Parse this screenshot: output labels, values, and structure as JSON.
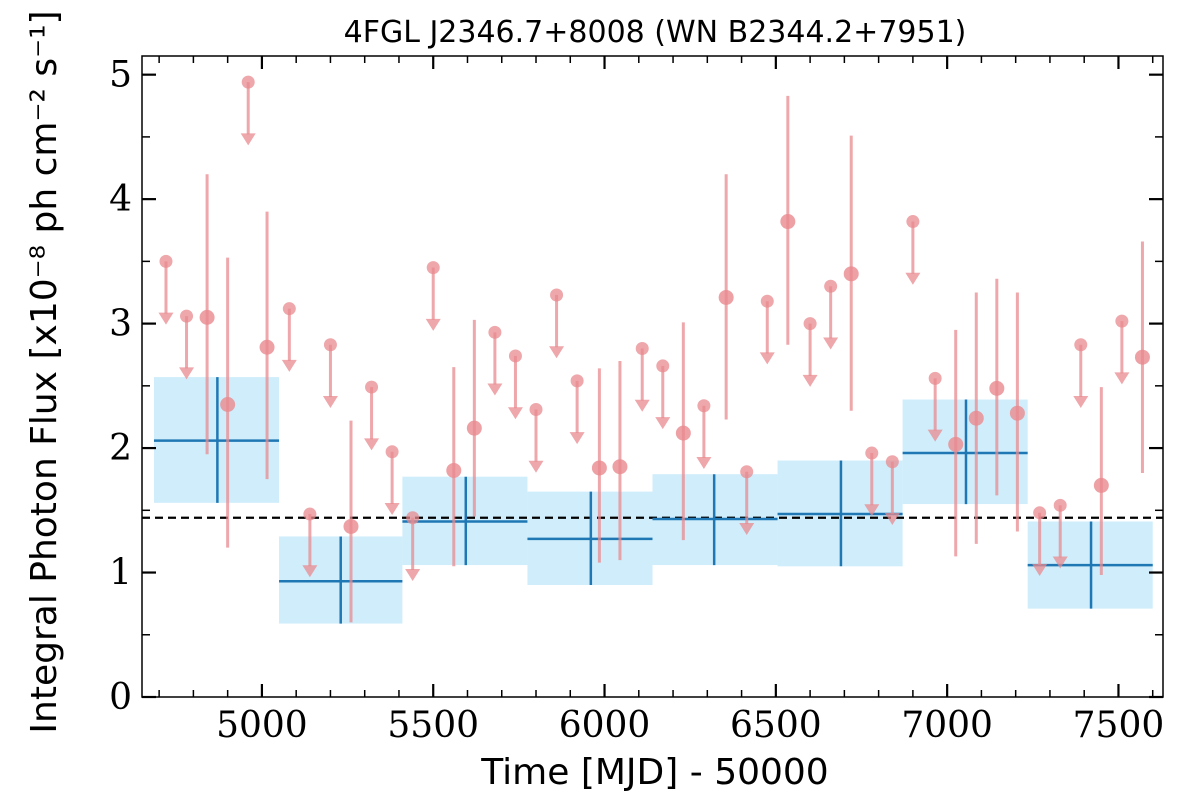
{
  "chart_data": {
    "type": "scatter",
    "title": "4FGL J2346.7+8008 (WN B2344.2+7951)",
    "xlabel": "Time [MJD] - 50000",
    "ylabel": "Integral Photon Flux [x10⁻⁸ ph cm⁻² s⁻¹]",
    "xlim": [
      4650,
      7630
    ],
    "ylim": [
      0,
      5.15
    ],
    "x_ticks": [
      5000,
      5500,
      6000,
      6500,
      7000,
      7500
    ],
    "x_minor_step": 100,
    "y_ticks": [
      0,
      1,
      2,
      3,
      4,
      5
    ],
    "y_minor_step": 0.5,
    "x_tick_labels": [
      "5000",
      "5500",
      "6000",
      "6500",
      "7000",
      "7500"
    ],
    "y_tick_labels": [
      "0",
      "1",
      "2",
      "3",
      "4",
      "5"
    ],
    "grid": false,
    "average_flux": 1.44,
    "colors": {
      "short_points": "#e8898f",
      "long_bins": "#1f77b4",
      "long_band": "#cfedfb",
      "average_line": "#000000"
    },
    "long_bins": [
      {
        "x_start": 4685,
        "x_end": 5050,
        "x_center": 4870,
        "y": 2.06,
        "y_low": 1.56,
        "y_high": 2.57
      },
      {
        "x_start": 5050,
        "x_end": 5410,
        "x_center": 5230,
        "y": 0.93,
        "y_low": 0.59,
        "y_high": 1.29
      },
      {
        "x_start": 5410,
        "x_end": 5775,
        "x_center": 5595,
        "y": 1.41,
        "y_low": 1.06,
        "y_high": 1.77
      },
      {
        "x_start": 5775,
        "x_end": 6140,
        "x_center": 5960,
        "y": 1.27,
        "y_low": 0.9,
        "y_high": 1.65
      },
      {
        "x_start": 6140,
        "x_end": 6505,
        "x_center": 6320,
        "y": 1.43,
        "y_low": 1.06,
        "y_high": 1.79
      },
      {
        "x_start": 6505,
        "x_end": 6870,
        "x_center": 6690,
        "y": 1.47,
        "y_low": 1.05,
        "y_high": 1.9
      },
      {
        "x_start": 6870,
        "x_end": 7235,
        "x_center": 7055,
        "y": 1.96,
        "y_low": 1.55,
        "y_high": 2.39
      },
      {
        "x_start": 7235,
        "x_end": 7600,
        "x_center": 7420,
        "y": 1.06,
        "y_low": 0.71,
        "y_high": 1.41
      }
    ],
    "short_points": [
      {
        "x": 4720,
        "y": 3.5,
        "upper_limit": true
      },
      {
        "x": 4780,
        "y": 3.06,
        "upper_limit": true
      },
      {
        "x": 4840,
        "y": 3.05,
        "y_low": 1.95,
        "y_high": 4.2
      },
      {
        "x": 4900,
        "y": 2.35,
        "y_low": 1.2,
        "y_high": 3.53
      },
      {
        "x": 4960,
        "y": 4.94,
        "upper_limit": true
      },
      {
        "x": 5015,
        "y": 2.81,
        "y_low": 1.75,
        "y_high": 3.9
      },
      {
        "x": 5080,
        "y": 3.12,
        "upper_limit": true
      },
      {
        "x": 5140,
        "y": 1.47,
        "upper_limit": true
      },
      {
        "x": 5200,
        "y": 2.83,
        "upper_limit": true
      },
      {
        "x": 5260,
        "y": 1.37,
        "y_low": 0.6,
        "y_high": 2.22
      },
      {
        "x": 5320,
        "y": 2.49,
        "upper_limit": true
      },
      {
        "x": 5380,
        "y": 1.97,
        "upper_limit": true
      },
      {
        "x": 5440,
        "y": 1.44,
        "upper_limit": true
      },
      {
        "x": 5500,
        "y": 3.45,
        "upper_limit": true
      },
      {
        "x": 5560,
        "y": 1.82,
        "y_low": 1.05,
        "y_high": 2.65
      },
      {
        "x": 5620,
        "y": 2.16,
        "y_low": 1.45,
        "y_high": 3.03
      },
      {
        "x": 5680,
        "y": 2.93,
        "upper_limit": true
      },
      {
        "x": 5740,
        "y": 2.74,
        "upper_limit": true
      },
      {
        "x": 5800,
        "y": 2.31,
        "upper_limit": true
      },
      {
        "x": 5860,
        "y": 3.23,
        "upper_limit": true
      },
      {
        "x": 5920,
        "y": 2.54,
        "upper_limit": true
      },
      {
        "x": 5985,
        "y": 1.84,
        "y_low": 1.08,
        "y_high": 2.64
      },
      {
        "x": 6045,
        "y": 1.85,
        "y_low": 1.1,
        "y_high": 2.7
      },
      {
        "x": 6110,
        "y": 2.8,
        "upper_limit": true
      },
      {
        "x": 6170,
        "y": 2.66,
        "upper_limit": true
      },
      {
        "x": 6230,
        "y": 2.12,
        "y_low": 1.26,
        "y_high": 3.01
      },
      {
        "x": 6290,
        "y": 2.34,
        "upper_limit": true
      },
      {
        "x": 6355,
        "y": 3.21,
        "y_low": 2.23,
        "y_high": 4.2
      },
      {
        "x": 6415,
        "y": 1.81,
        "upper_limit": true
      },
      {
        "x": 6475,
        "y": 3.18,
        "upper_limit": true
      },
      {
        "x": 6535,
        "y": 3.82,
        "y_low": 2.83,
        "y_high": 4.83
      },
      {
        "x": 6600,
        "y": 3.0,
        "upper_limit": true
      },
      {
        "x": 6660,
        "y": 3.3,
        "upper_limit": true
      },
      {
        "x": 6720,
        "y": 3.4,
        "y_low": 2.3,
        "y_high": 4.51
      },
      {
        "x": 6780,
        "y": 1.96,
        "upper_limit": true
      },
      {
        "x": 6840,
        "y": 1.89,
        "upper_limit": true
      },
      {
        "x": 6900,
        "y": 3.82,
        "upper_limit": true
      },
      {
        "x": 6965,
        "y": 2.56,
        "upper_limit": true
      },
      {
        "x": 7025,
        "y": 2.03,
        "y_low": 1.13,
        "y_high": 2.95
      },
      {
        "x": 7085,
        "y": 2.24,
        "y_low": 1.23,
        "y_high": 3.25
      },
      {
        "x": 7145,
        "y": 2.48,
        "y_low": 1.62,
        "y_high": 3.36
      },
      {
        "x": 7205,
        "y": 2.28,
        "y_low": 1.33,
        "y_high": 3.25
      },
      {
        "x": 7270,
        "y": 1.48,
        "upper_limit": true
      },
      {
        "x": 7330,
        "y": 1.54,
        "upper_limit": true
      },
      {
        "x": 7390,
        "y": 2.83,
        "upper_limit": true
      },
      {
        "x": 7450,
        "y": 1.7,
        "y_low": 0.98,
        "y_high": 2.49
      },
      {
        "x": 7510,
        "y": 3.02,
        "upper_limit": true
      },
      {
        "x": 7570,
        "y": 2.73,
        "y_low": 1.8,
        "y_high": 3.66
      }
    ]
  }
}
